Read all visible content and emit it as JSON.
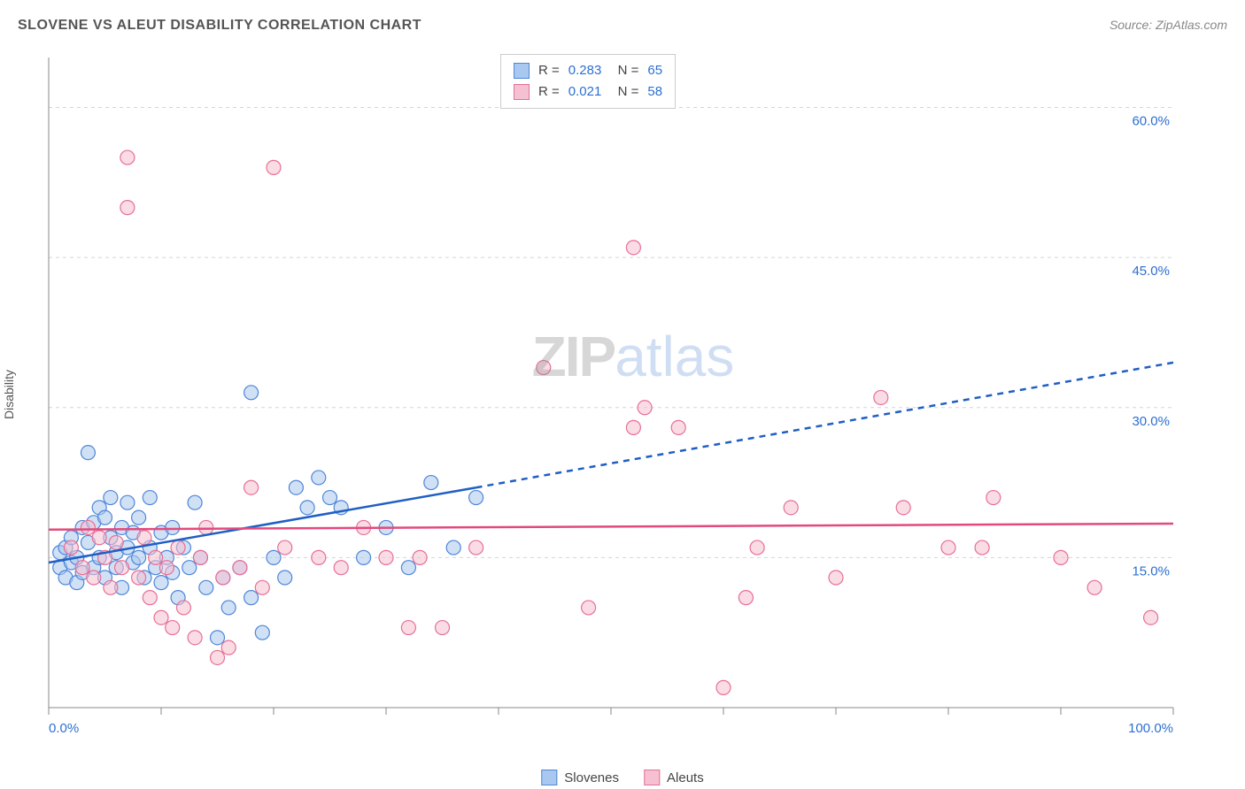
{
  "header": {
    "title": "SLOVENE VS ALEUT DISABILITY CORRELATION CHART",
    "source": "Source: ZipAtlas.com"
  },
  "watermark": {
    "part1": "ZIP",
    "part2": "atlas"
  },
  "chart": {
    "type": "scatter",
    "y_axis_label": "Disability",
    "xlim": [
      0,
      100
    ],
    "ylim": [
      0,
      65
    ],
    "x_ticks": [
      0,
      10,
      20,
      30,
      40,
      50,
      60,
      70,
      80,
      90,
      100
    ],
    "x_tick_labels": {
      "0": "0.0%",
      "100": "100.0%"
    },
    "y_ticks": [
      15,
      30,
      45,
      60
    ],
    "y_tick_labels": {
      "15": "15.0%",
      "30": "30.0%",
      "45": "45.0%",
      "60": "60.0%"
    },
    "background_color": "#ffffff",
    "grid_color": "#d5d5d5",
    "axis_color": "#888888",
    "tick_label_color": "#2c6fd1",
    "marker_radius": 8,
    "marker_opacity": 0.55,
    "series": [
      {
        "key": "slovenes",
        "label": "Slovenes",
        "fill_color": "#a9c8ef",
        "stroke_color": "#4f86d8",
        "R": "0.283",
        "N": "65",
        "trend": {
          "x1": 0,
          "y1": 14.5,
          "x2": 38,
          "y2": 22,
          "x2_ext": 100,
          "y2_ext": 34.5,
          "color": "#1f5fc4",
          "width": 2.5
        },
        "points": [
          [
            1,
            14
          ],
          [
            1,
            15.5
          ],
          [
            1.5,
            13
          ],
          [
            1.5,
            16
          ],
          [
            2,
            14.5
          ],
          [
            2,
            17
          ],
          [
            2.5,
            12.5
          ],
          [
            2.5,
            15
          ],
          [
            3,
            18
          ],
          [
            3,
            13.5
          ],
          [
            3.5,
            25.5
          ],
          [
            3.5,
            16.5
          ],
          [
            4,
            14
          ],
          [
            4,
            18.5
          ],
          [
            4.5,
            20
          ],
          [
            4.5,
            15
          ],
          [
            5,
            19
          ],
          [
            5,
            13
          ],
          [
            5.5,
            17
          ],
          [
            5.5,
            21
          ],
          [
            6,
            15.5
          ],
          [
            6,
            14
          ],
          [
            6.5,
            18
          ],
          [
            6.5,
            12
          ],
          [
            7,
            16
          ],
          [
            7,
            20.5
          ],
          [
            7.5,
            14.5
          ],
          [
            7.5,
            17.5
          ],
          [
            8,
            15
          ],
          [
            8,
            19
          ],
          [
            8.5,
            13
          ],
          [
            9,
            16
          ],
          [
            9,
            21
          ],
          [
            9.5,
            14
          ],
          [
            10,
            17.5
          ],
          [
            10,
            12.5
          ],
          [
            10.5,
            15
          ],
          [
            11,
            13.5
          ],
          [
            11,
            18
          ],
          [
            11.5,
            11
          ],
          [
            12,
            16
          ],
          [
            12.5,
            14
          ],
          [
            13,
            20.5
          ],
          [
            13.5,
            15
          ],
          [
            14,
            12
          ],
          [
            15,
            7
          ],
          [
            15.5,
            13
          ],
          [
            16,
            10
          ],
          [
            17,
            14
          ],
          [
            18,
            11
          ],
          [
            18,
            31.5
          ],
          [
            19,
            7.5
          ],
          [
            20,
            15
          ],
          [
            21,
            13
          ],
          [
            22,
            22
          ],
          [
            23,
            20
          ],
          [
            24,
            23
          ],
          [
            25,
            21
          ],
          [
            26,
            20
          ],
          [
            28,
            15
          ],
          [
            30,
            18
          ],
          [
            32,
            14
          ],
          [
            34,
            22.5
          ],
          [
            36,
            16
          ],
          [
            38,
            21
          ]
        ]
      },
      {
        "key": "aleuts",
        "label": "Aleuts",
        "fill_color": "#f5c0cf",
        "stroke_color": "#e86f95",
        "R": "0.021",
        "N": "58",
        "trend": {
          "x1": 0,
          "y1": 17.8,
          "x2": 100,
          "y2": 18.4,
          "color": "#e24a7d",
          "width": 2.5
        },
        "points": [
          [
            2,
            16
          ],
          [
            3,
            14
          ],
          [
            3.5,
            18
          ],
          [
            4,
            13
          ],
          [
            4.5,
            17
          ],
          [
            5,
            15
          ],
          [
            5.5,
            12
          ],
          [
            6,
            16.5
          ],
          [
            6.5,
            14
          ],
          [
            7,
            55
          ],
          [
            7,
            50
          ],
          [
            8,
            13
          ],
          [
            8.5,
            17
          ],
          [
            9,
            11
          ],
          [
            9.5,
            15
          ],
          [
            10,
            9
          ],
          [
            10.5,
            14
          ],
          [
            11,
            8
          ],
          [
            11.5,
            16
          ],
          [
            12,
            10
          ],
          [
            13,
            7
          ],
          [
            13.5,
            15
          ],
          [
            14,
            18
          ],
          [
            15,
            5
          ],
          [
            15.5,
            13
          ],
          [
            16,
            6
          ],
          [
            17,
            14
          ],
          [
            18,
            22
          ],
          [
            19,
            12
          ],
          [
            20,
            54
          ],
          [
            21,
            16
          ],
          [
            24,
            15
          ],
          [
            26,
            14
          ],
          [
            28,
            18
          ],
          [
            30,
            15
          ],
          [
            32,
            8
          ],
          [
            33,
            15
          ],
          [
            35,
            8
          ],
          [
            38,
            16
          ],
          [
            44,
            34
          ],
          [
            48,
            10
          ],
          [
            52,
            46
          ],
          [
            52,
            28
          ],
          [
            53,
            30
          ],
          [
            56,
            28
          ],
          [
            60,
            2
          ],
          [
            62,
            11
          ],
          [
            63,
            16
          ],
          [
            66,
            20
          ],
          [
            70,
            13
          ],
          [
            74,
            31
          ],
          [
            76,
            20
          ],
          [
            80,
            16
          ],
          [
            83,
            16
          ],
          [
            84,
            21
          ],
          [
            90,
            15
          ],
          [
            93,
            12
          ],
          [
            98,
            9
          ]
        ]
      }
    ],
    "legend": {
      "bottom": [
        "Slovenes",
        "Aleuts"
      ]
    }
  }
}
